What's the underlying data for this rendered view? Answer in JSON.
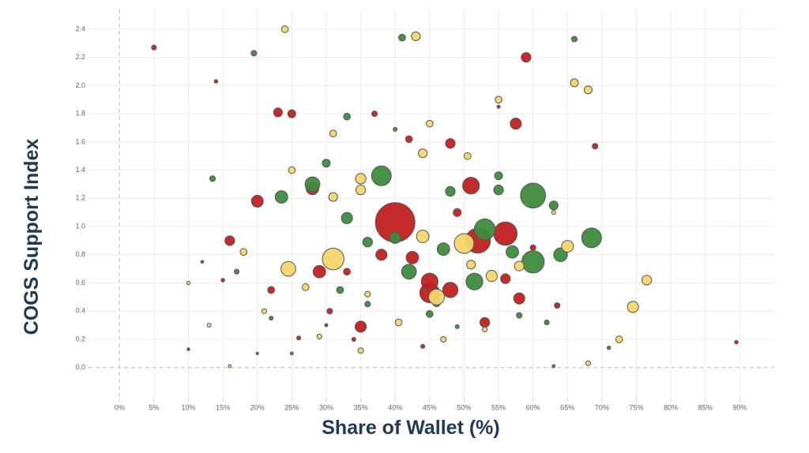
{
  "chart_data": {
    "type": "scatter",
    "x_label": "Share of Wallet (%)",
    "y_label": "COGS Support Index",
    "xlim": [
      -4.5,
      95
    ],
    "ylim": [
      -0.22,
      2.54
    ],
    "xticks": [
      {
        "value": 0,
        "label": "0%"
      },
      {
        "value": 5,
        "label": "5%"
      },
      {
        "value": 10,
        "label": "10%"
      },
      {
        "value": 15,
        "label": "15%"
      },
      {
        "value": 20,
        "label": "20%"
      },
      {
        "value": 25,
        "label": "25%"
      },
      {
        "value": 30,
        "label": "30%"
      },
      {
        "value": 35,
        "label": "35%"
      },
      {
        "value": 40,
        "label": "40%"
      },
      {
        "value": 45,
        "label": "45%"
      },
      {
        "value": 50,
        "label": "50%"
      },
      {
        "value": 55,
        "label": "55%"
      },
      {
        "value": 60,
        "label": "60%"
      },
      {
        "value": 65,
        "label": "65%"
      },
      {
        "value": 70,
        "label": "70%"
      },
      {
        "value": 75,
        "label": "75%"
      },
      {
        "value": 80,
        "label": "80%"
      },
      {
        "value": 85,
        "label": "85%"
      },
      {
        "value": 90,
        "label": "90%"
      }
    ],
    "yticks": [
      {
        "value": 0,
        "label": "0.0"
      },
      0.2,
      0.4,
      0.6,
      0.8,
      {
        "value": 1,
        "label": "1.0"
      },
      1.2,
      1.4,
      1.6,
      1.8,
      {
        "value": 2,
        "label": "2.0"
      },
      2.2,
      2.4
    ],
    "grid": true,
    "series": [
      {
        "color": "#c0211f",
        "x": [
          40,
          52,
          56,
          45,
          45,
          48,
          51,
          57.5,
          59,
          42.5,
          38,
          29,
          28,
          20,
          16,
          23,
          25,
          48,
          53,
          35,
          58,
          56,
          63.5,
          69,
          5,
          14,
          37,
          33,
          10,
          20,
          30,
          89.5,
          44,
          55,
          42,
          30.5,
          26,
          34,
          15,
          22,
          49,
          60,
          12
        ],
        "values": [
          1.03,
          0.9,
          0.95,
          0.53,
          0.61,
          0.55,
          1.29,
          1.73,
          2.2,
          0.78,
          0.8,
          0.68,
          1.27,
          1.18,
          0.9,
          1.81,
          1.8,
          1.59,
          0.32,
          0.29,
          0.49,
          0.63,
          0.44,
          1.57,
          2.27,
          2.03,
          1.8,
          0.68,
          0.13,
          0.1,
          0.3,
          0.18,
          0.15,
          1.85,
          1.62,
          0.4,
          0.21,
          0.2,
          0.62,
          0.55,
          1.1,
          0.85,
          0.75
        ],
        "sizes": [
          100,
          40,
          35,
          25,
          18,
          15,
          18,
          8,
          6,
          10,
          8,
          10,
          10,
          9,
          6,
          5,
          4,
          6,
          6,
          8,
          8,
          6,
          2,
          2,
          1.5,
          0.8,
          2,
          3,
          0.5,
          0.4,
          0.6,
          0.8,
          1,
          0.6,
          3,
          2,
          1,
          1,
          0.8,
          3,
          4,
          2,
          0.5
        ]
      },
      {
        "color": "#3d8c3d",
        "x": [
          60,
          68.5,
          60,
          53,
          38,
          51.5,
          42,
          47,
          64,
          28,
          23.5,
          33,
          36,
          40,
          48,
          55,
          55,
          63,
          41,
          66,
          19.5,
          30,
          33,
          45,
          57,
          46,
          32,
          13.5,
          17,
          62,
          71,
          63,
          22,
          36,
          25,
          40,
          49,
          58
        ],
        "values": [
          1.22,
          0.92,
          0.75,
          0.98,
          1.36,
          0.61,
          0.68,
          0.84,
          0.8,
          1.3,
          1.21,
          1.06,
          0.89,
          0.92,
          1.25,
          1.26,
          1.36,
          1.15,
          2.34,
          2.33,
          2.23,
          1.45,
          1.78,
          0.38,
          0.82,
          0.46,
          0.55,
          1.34,
          0.68,
          0.32,
          0.14,
          0.01,
          0.35,
          0.45,
          0.1,
          1.69,
          0.29,
          0.37
        ],
        "sizes": [
          40,
          25,
          32,
          28,
          25,
          18,
          14,
          10,
          12,
          14,
          10,
          8,
          6,
          8,
          6,
          6,
          4,
          5,
          3,
          2,
          2,
          4,
          3,
          3,
          10,
          4,
          3,
          2,
          1.5,
          1.5,
          0.8,
          0.6,
          1,
          2,
          0.6,
          1,
          1,
          2
        ]
      },
      {
        "color": "#f6d66c",
        "x": [
          31,
          50,
          24.5,
          46,
          44,
          54,
          65,
          74.5,
          76.5,
          43,
          24,
          66,
          68,
          55,
          35,
          35,
          44,
          45,
          25,
          31,
          31,
          50.5,
          51,
          58,
          27,
          18,
          36,
          40.5,
          47,
          72.5,
          68,
          21,
          13,
          16,
          53,
          63,
          10,
          35,
          29
        ],
        "values": [
          0.77,
          0.88,
          0.7,
          0.5,
          0.93,
          0.65,
          0.86,
          0.43,
          0.62,
          2.35,
          2.4,
          2.02,
          1.97,
          1.9,
          1.34,
          1.26,
          1.52,
          1.73,
          1.4,
          1.21,
          1.66,
          1.5,
          0.73,
          0.72,
          0.57,
          0.82,
          0.52,
          0.32,
          0.2,
          0.2,
          0.03,
          0.4,
          0.3,
          0.01,
          0.27,
          1.1,
          0.6,
          0.12,
          0.22
        ],
        "sizes": [
          30,
          25,
          14,
          16,
          10,
          8,
          9,
          8,
          6,
          5,
          3,
          4,
          4,
          3,
          7,
          6,
          5,
          3,
          3,
          5,
          3,
          3,
          5,
          6,
          3,
          3,
          2,
          3,
          2,
          3,
          1.5,
          1.5,
          1,
          0.6,
          1.5,
          1,
          0.8,
          2,
          1.5
        ]
      }
    ]
  }
}
